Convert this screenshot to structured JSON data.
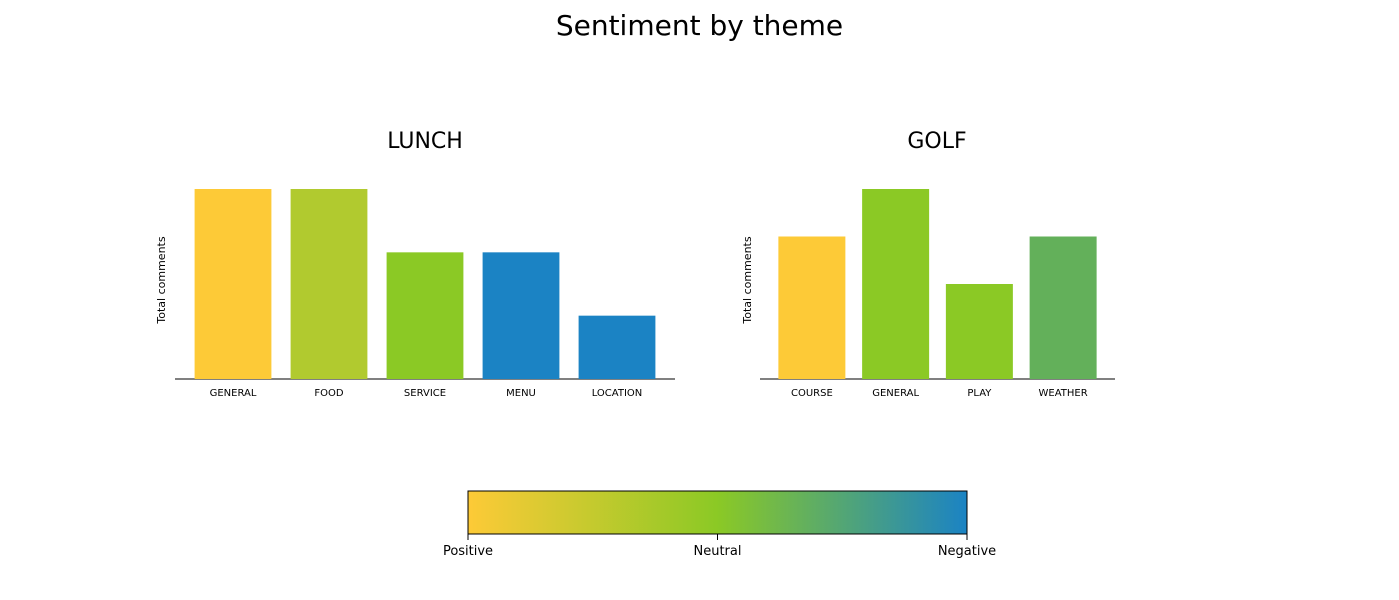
{
  "title": "Sentiment by theme",
  "chart_data": [
    {
      "type": "bar",
      "title": "LUNCH",
      "ylabel": "Total comments",
      "categories": [
        "GENERAL",
        "FOOD",
        "SERVICE",
        "MENU",
        "LOCATION"
      ],
      "values": [
        3,
        3,
        2,
        2,
        1
      ],
      "colors": [
        "#fdca37",
        "#b1ca2f",
        "#8bc925",
        "#1b83c4",
        "#1b83c4"
      ],
      "ylim": [
        0,
        3
      ]
    },
    {
      "type": "bar",
      "title": "GOLF",
      "ylabel": "Total comments",
      "categories": [
        "COURSE",
        "GENERAL",
        "PLAY",
        "WEATHER"
      ],
      "values": [
        3,
        4,
        2,
        3
      ],
      "colors": [
        "#fdca37",
        "#8bc925",
        "#8bc925",
        "#63b05a"
      ],
      "ylim": [
        0,
        4
      ]
    }
  ],
  "colorbar": {
    "labels": [
      "Positive",
      "Neutral",
      "Negative"
    ],
    "colors": [
      "#fdca37",
      "#8bc925",
      "#1b83c4"
    ]
  }
}
